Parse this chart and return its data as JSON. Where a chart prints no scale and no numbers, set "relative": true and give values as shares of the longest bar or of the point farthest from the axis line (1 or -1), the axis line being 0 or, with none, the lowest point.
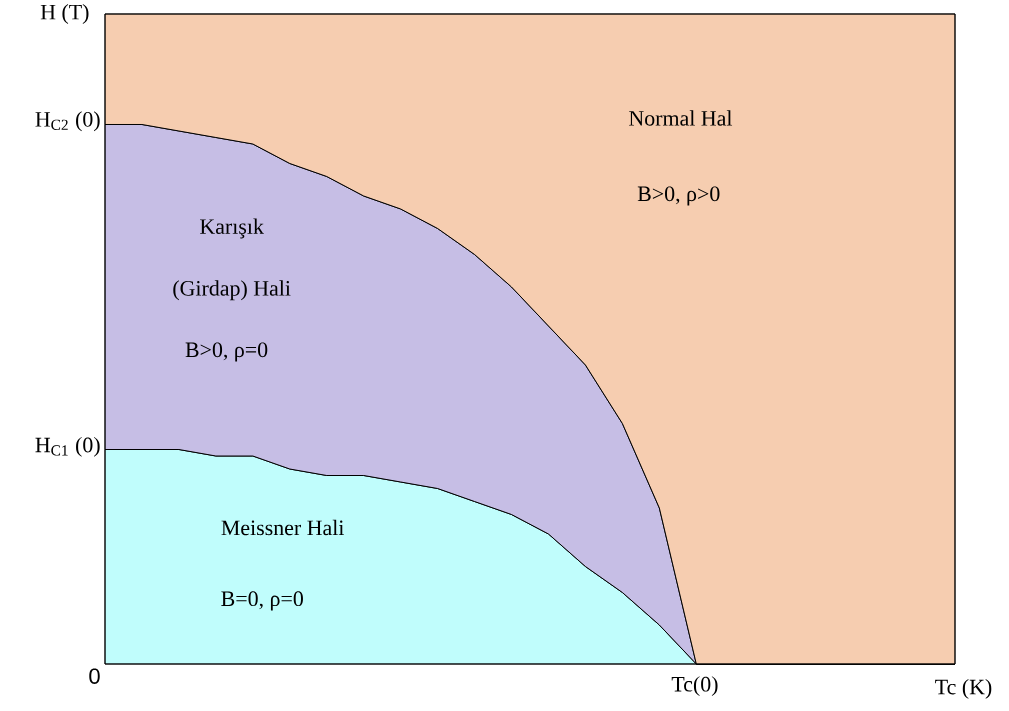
{
  "chart_data": {
    "type": "area",
    "relative": true,
    "stacked": true,
    "xlabel": "Tc (K)",
    "ylabel": "H (T)",
    "categories": [
      null,
      null,
      null,
      null,
      null,
      null,
      null,
      null,
      null,
      null,
      null,
      null,
      null,
      null,
      null,
      null,
      null,
      null,
      null,
      null,
      null,
      null,
      null,
      null
    ],
    "series": [
      {
        "color": "#c0fdfc",
        "values": [
          0.33,
          0.33,
          0.33,
          0.32,
          0.32,
          0.3,
          0.29,
          0.29,
          0.28,
          0.27,
          0.25,
          0.23,
          0.2,
          0.15,
          0.11,
          0.06,
          0,
          0,
          0,
          0,
          0,
          0,
          0,
          0
        ]
      },
      {
        "color": "#c6bee5",
        "values": [
          0.5,
          0.5,
          0.49,
          0.49,
          0.48,
          0.47,
          0.46,
          0.43,
          0.42,
          0.4,
          0.38,
          0.35,
          0.32,
          0.31,
          0.26,
          0.18,
          0,
          0,
          0,
          0,
          0,
          0,
          0,
          0
        ]
      },
      {
        "color": "#f6cdb0",
        "values": [
          0.17,
          0.17,
          0.18,
          0.19,
          0.2,
          0.23,
          0.25,
          0.28,
          0.3,
          0.33,
          0.37,
          0.42,
          0.48,
          0.54,
          0.63,
          0.76,
          1,
          1,
          1,
          1,
          1,
          1,
          1,
          1
        ]
      }
    ],
    "annotations": [
      "0",
      "H$_{C1}$ (0)",
      "H$_{C2}$ (0)",
      "Tc(0)",
      "Normal Hal",
      "B>0, ρ>0",
      "Karışık",
      "(Girdap) Hali",
      "B>0, ρ=0",
      "Meissner Hali",
      "B=0, ρ=0"
    ]
  }
}
